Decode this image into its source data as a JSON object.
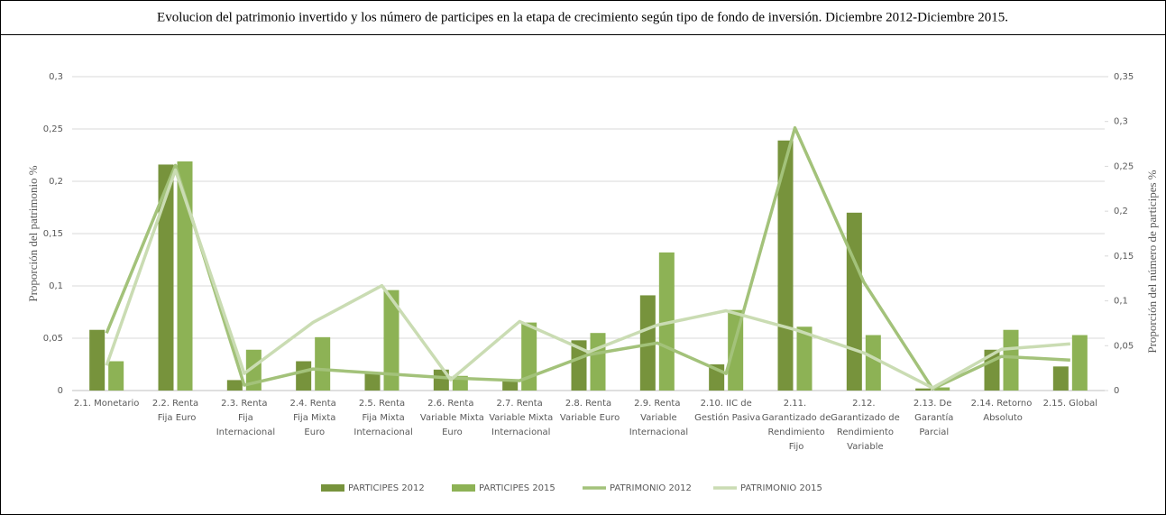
{
  "chart_data": {
    "type": "bar",
    "title": "Evolucion del patrimonio invertido y los número de participes en la etapa de crecimiento según tipo de fondo de inversión. Diciembre 2012-Diciembre 2015.",
    "ylabel": "Proporción del patrimonio %",
    "y2label": "Proporción del número de participes  %",
    "categories": [
      "2.1. Monetario",
      "2.2. Renta Fija Euro",
      "2.3. Renta Fija Internacional",
      "2.4. Renta Fija Mixta Euro",
      "2.5. Renta Fija Mixta Internacional",
      "2.6. Renta Variable Mixta Euro",
      "2.7. Renta Variable Mixta Internacional",
      "2.8. Renta Variable Euro",
      "2.9. Renta Variable Internacional",
      "2.10. IIC de Gestión Pasiva",
      "2.11. Garantizado de Rendimiento Fijo",
      "2.12. Garantizado de Rendimiento Variable",
      "2.13. De Garantía Parcial",
      "2.14. Retorno Absoluto",
      "2.15. Global"
    ],
    "series": [
      {
        "name": "PARTICIPES 2012",
        "type": "bar",
        "color": "#77933c",
        "values": [
          0.058,
          0.216,
          0.01,
          0.028,
          0.017,
          0.02,
          0.009,
          0.048,
          0.091,
          0.025,
          0.239,
          0.17,
          0.002,
          0.039,
          0.023
        ]
      },
      {
        "name": "PARTICIPES 2015",
        "type": "bar",
        "color": "#8db255",
        "values": [
          0.028,
          0.219,
          0.039,
          0.051,
          0.096,
          0.014,
          0.065,
          0.055,
          0.132,
          0.077,
          0.061,
          0.053,
          0.003,
          0.058,
          0.053
        ]
      },
      {
        "name": "PATRIMONIO 2012",
        "type": "line",
        "axis": "y2",
        "color": "#a3c27a",
        "values": [
          0.064,
          0.251,
          0.006,
          0.024,
          0.019,
          0.014,
          0.011,
          0.04,
          0.053,
          0.019,
          0.293,
          0.121,
          0.002,
          0.038,
          0.034
        ]
      },
      {
        "name": "PATRIMONIO 2015",
        "type": "line",
        "axis": "y2",
        "color": "#cadcb3",
        "values": [
          0.028,
          0.246,
          0.019,
          0.076,
          0.117,
          0.012,
          0.077,
          0.043,
          0.073,
          0.089,
          0.068,
          0.042,
          0.003,
          0.046,
          0.052
        ]
      }
    ],
    "ylim": [
      0,
      0.3
    ],
    "yticks": [
      0,
      {
        "value": 0.05,
        "label": "0,05"
      },
      {
        "value": 0.1,
        "label": "0,1"
      },
      {
        "value": 0.15,
        "label": "0,15"
      },
      {
        "value": 0.2,
        "label": "0,2"
      },
      {
        "value": 0.25,
        "label": "0,25"
      },
      {
        "value": 0.3,
        "label": "0,3"
      }
    ],
    "y2lim": [
      0,
      0.35
    ],
    "y2ticks": [
      0,
      {
        "value": 0.05,
        "label": "0,05"
      },
      {
        "value": 0.1,
        "label": "0,1"
      },
      {
        "value": 0.15,
        "label": "0,15"
      },
      {
        "value": 0.2,
        "label": "0,2"
      },
      {
        "value": 0.25,
        "label": "0,25"
      },
      {
        "value": 0.3,
        "label": "0,3"
      },
      {
        "value": 0.35,
        "label": "0,35"
      }
    ],
    "grid": true,
    "legend": "bottom"
  }
}
